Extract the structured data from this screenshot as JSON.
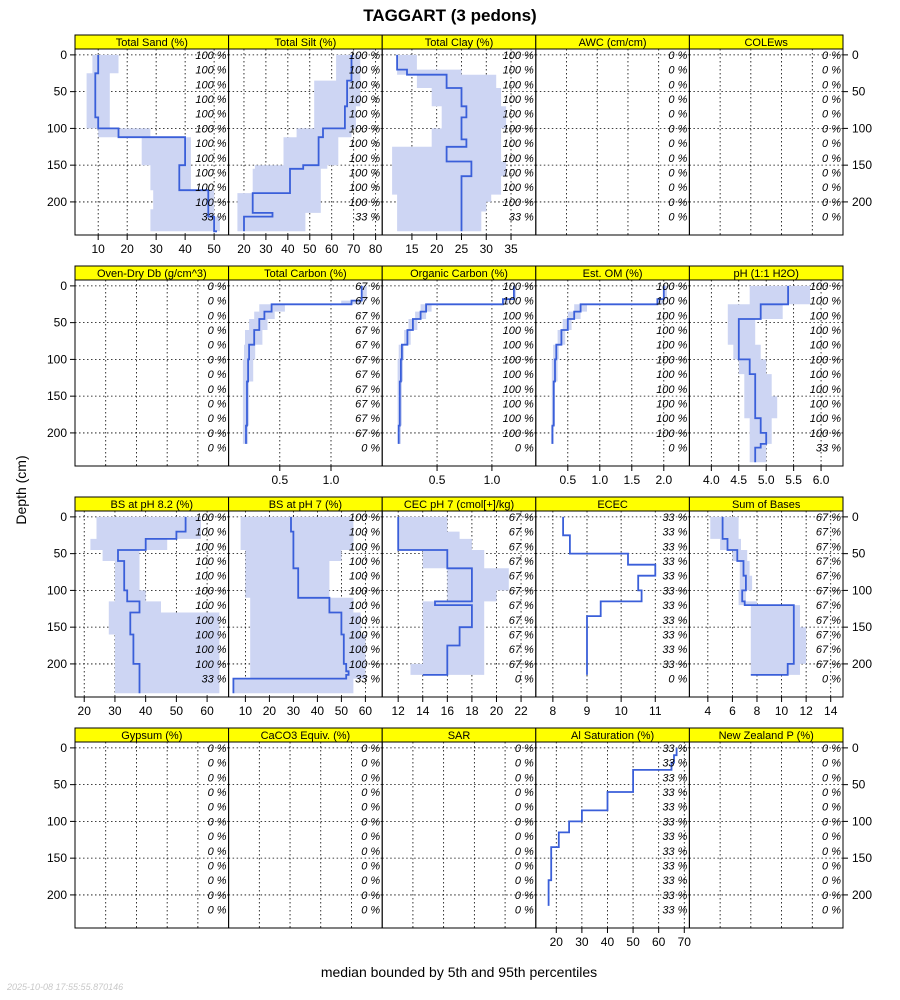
{
  "title": "TAGGART (3 pedons)",
  "caption": "median bounded by 5th and 95th percentiles",
  "ylabel": "Depth (cm)",
  "timestamp": "2025-10-08 17:55:55.870146",
  "colors": {
    "line": "#3a5fd9",
    "band": "#cdd5f3",
    "strip": "#ffff00",
    "axis": "#000000",
    "grid": "#000000"
  },
  "depth_ticks": [
    0,
    50,
    100,
    150,
    200
  ],
  "pct_labels": {
    "a": [
      "100 %",
      "100 %",
      "100 %",
      "100 %",
      "100 %",
      "100 %",
      "100 %",
      "100 %",
      "100 %",
      "100 %",
      "100 %",
      "33 %"
    ],
    "b": [
      "0 %",
      "0 %",
      "0 %",
      "0 %",
      "0 %",
      "0 %",
      "0 %",
      "0 %",
      "0 %",
      "0 %",
      "0 %",
      "0 %"
    ],
    "c": [
      "67 %",
      "67 %",
      "67 %",
      "67 %",
      "67 %",
      "67 %",
      "67 %",
      "67 %",
      "67 %",
      "67 %",
      "67 %",
      "0 %"
    ],
    "d": [
      "100 %",
      "100 %",
      "100 %",
      "100 %",
      "100 %",
      "100 %",
      "100 %",
      "100 %",
      "100 %",
      "100 %",
      "100 %",
      "0 %"
    ],
    "e": [
      "33 %",
      "33 %",
      "33 %",
      "33 %",
      "33 %",
      "33 %",
      "33 %",
      "33 %",
      "33 %",
      "33 %",
      "33 %",
      "0 %"
    ],
    "f": [
      "33 %",
      "33 %",
      "33 %",
      "33 %",
      "33 %",
      "33 %",
      "33 %",
      "33 %",
      "33 %",
      "33 %",
      "33 %",
      "33 %"
    ]
  },
  "chart_data": [
    {
      "type": "line",
      "title": "Total Sand (%)",
      "xlim": [
        2,
        55
      ],
      "xticks": [
        "10",
        "20",
        "30",
        "40",
        "50"
      ],
      "tick_values": [
        10,
        20,
        30,
        40,
        50
      ],
      "pct": "a",
      "depth": [
        0,
        10,
        25,
        40,
        55,
        70,
        85,
        100,
        112,
        150,
        165,
        184,
        200,
        210,
        220,
        240
      ],
      "values": [
        10,
        10,
        9,
        9,
        9,
        9,
        10,
        17,
        40,
        38,
        38,
        48,
        48,
        48,
        50,
        51
      ],
      "lower": [
        8,
        8,
        6,
        6,
        6,
        6,
        6,
        10,
        25,
        28,
        28,
        29,
        29,
        28,
        28,
        28
      ],
      "upper": [
        17,
        17,
        14,
        14,
        14,
        14,
        14,
        28,
        42,
        42,
        42,
        50,
        50,
        50,
        52,
        52
      ]
    },
    {
      "type": "line",
      "title": "Total Silt (%)",
      "xlim": [
        13,
        83
      ],
      "xticks": [
        "20",
        "30",
        "40",
        "50",
        "60",
        "70",
        "80"
      ],
      "tick_values": [
        20,
        30,
        40,
        50,
        60,
        70,
        80
      ],
      "pct": "a",
      "depth": [
        0,
        25,
        35,
        60,
        70,
        100,
        112,
        150,
        155,
        188,
        200,
        210,
        215,
        220,
        240
      ],
      "values": [
        69,
        69,
        67,
        67,
        66,
        56,
        54,
        47,
        41,
        24,
        24,
        24,
        33,
        20,
        20
      ],
      "lower": [
        62,
        62,
        52,
        52,
        52,
        44,
        38,
        25,
        24,
        17,
        17,
        17,
        17,
        17,
        17
      ],
      "upper": [
        73,
        73,
        73,
        73,
        71,
        69,
        63,
        58,
        55,
        55,
        55,
        55,
        48,
        48,
        48
      ]
    },
    {
      "type": "line",
      "title": "Total Clay (%)",
      "xlim": [
        9,
        40
      ],
      "xticks": [
        "15",
        "20",
        "25",
        "30",
        "35"
      ],
      "tick_values": [
        15,
        20,
        25,
        30,
        35
      ],
      "pct": "a",
      "depth": [
        0,
        20,
        27,
        45,
        70,
        85,
        100,
        115,
        125,
        145,
        150,
        165,
        190,
        200,
        213,
        240
      ],
      "values": [
        12,
        14,
        22,
        25,
        26,
        25,
        25,
        26,
        22,
        27,
        27,
        25,
        25,
        25,
        25,
        25
      ],
      "lower": [
        12,
        12,
        16,
        19,
        21,
        21,
        19,
        19,
        11,
        11,
        11,
        11,
        12,
        12,
        12,
        12
      ],
      "upper": [
        16,
        25,
        32,
        33,
        34,
        34,
        33,
        33,
        33,
        34,
        34,
        33,
        31,
        30,
        29,
        28
      ]
    },
    {
      "type": "empty",
      "title": "AWC (cm/cm)",
      "xticks": [],
      "pct": "b"
    },
    {
      "type": "empty",
      "title": "COLEws",
      "xticks": [],
      "pct": "b"
    },
    {
      "type": "empty",
      "title": "Oven-Dry Db (g/cm^3)",
      "xticks": [],
      "pct": "b"
    },
    {
      "type": "line",
      "title": "Total Carbon (%)",
      "xlim": [
        0.0,
        1.5
      ],
      "xticks": [
        "0.5",
        "1.0"
      ],
      "tick_values": [
        0.5,
        1.0
      ],
      "pct": "c",
      "depth": [
        0,
        20,
        25,
        35,
        45,
        60,
        80,
        100,
        130,
        160,
        190,
        215
      ],
      "values": [
        1.3,
        1.2,
        0.42,
        0.35,
        0.3,
        0.25,
        0.2,
        0.19,
        0.18,
        0.18,
        0.17,
        0.17
      ],
      "lower": [
        1.3,
        1.1,
        0.3,
        0.25,
        0.2,
        0.16,
        0.15,
        0.14,
        0.14,
        0.14,
        0.14,
        0.14
      ],
      "upper": [
        1.35,
        1.3,
        0.55,
        0.45,
        0.38,
        0.33,
        0.26,
        0.24,
        0.2,
        0.2,
        0.19,
        0.19
      ]
    },
    {
      "type": "line",
      "title": "Organic Carbon (%)",
      "xlim": [
        0.0,
        1.4
      ],
      "xticks": [
        "0.5",
        "1.0"
      ],
      "tick_values": [
        0.5,
        1.0
      ],
      "pct": "d",
      "depth": [
        0,
        18,
        25,
        35,
        45,
        60,
        80,
        100,
        130,
        160,
        190,
        215
      ],
      "values": [
        1.2,
        1.1,
        0.4,
        0.35,
        0.28,
        0.23,
        0.18,
        0.17,
        0.16,
        0.16,
        0.15,
        0.15
      ],
      "lower": [
        1.2,
        1.1,
        0.35,
        0.3,
        0.24,
        0.2,
        0.15,
        0.14,
        0.14,
        0.14,
        0.14,
        0.14
      ],
      "upper": [
        1.22,
        1.15,
        0.45,
        0.4,
        0.32,
        0.26,
        0.2,
        0.19,
        0.18,
        0.18,
        0.17,
        0.17
      ]
    },
    {
      "type": "line",
      "title": "Est. OM (%)",
      "xlim": [
        0.0,
        2.4
      ],
      "xticks": [
        "0.5",
        "1.0",
        "1.5",
        "2.0"
      ],
      "tick_values": [
        0.5,
        1.0,
        1.5,
        2.0
      ],
      "pct": "d",
      "depth": [
        0,
        18,
        25,
        35,
        45,
        60,
        80,
        100,
        130,
        160,
        190,
        215
      ],
      "values": [
        2.0,
        1.9,
        0.7,
        0.6,
        0.5,
        0.4,
        0.32,
        0.3,
        0.28,
        0.28,
        0.26,
        0.26
      ],
      "lower": [
        2.0,
        1.9,
        0.6,
        0.5,
        0.42,
        0.34,
        0.27,
        0.25,
        0.25,
        0.25,
        0.24,
        0.24
      ],
      "upper": [
        2.05,
        2.0,
        0.8,
        0.7,
        0.56,
        0.46,
        0.36,
        0.34,
        0.3,
        0.3,
        0.28,
        0.28
      ]
    },
    {
      "type": "line",
      "title": "pH (1:1 H2O)",
      "xlim": [
        3.6,
        6.4
      ],
      "xticks": [
        "4.0",
        "4.5",
        "5.0",
        "5.5",
        "6.0"
      ],
      "tick_values": [
        4.0,
        4.5,
        5.0,
        5.5,
        6.0
      ],
      "pct": "a",
      "depth": [
        0,
        20,
        25,
        45,
        60,
        80,
        100,
        120,
        150,
        180,
        200,
        215,
        220,
        240
      ],
      "values": [
        5.4,
        5.4,
        4.9,
        4.5,
        4.5,
        4.5,
        4.7,
        4.8,
        4.8,
        4.9,
        5.0,
        4.9,
        4.8,
        4.8
      ],
      "lower": [
        4.7,
        4.7,
        4.3,
        4.3,
        4.3,
        4.4,
        4.5,
        4.6,
        4.6,
        4.7,
        4.7,
        4.7,
        4.7,
        4.7
      ],
      "upper": [
        5.8,
        5.8,
        5.3,
        4.8,
        4.8,
        4.9,
        5.0,
        5.1,
        5.2,
        5.1,
        5.1,
        5.0,
        5.0,
        5.0
      ]
    },
    {
      "type": "line",
      "title": "BS at pH 8.2 (%)",
      "xlim": [
        17,
        67
      ],
      "xticks": [
        "20",
        "30",
        "40",
        "50",
        "60"
      ],
      "tick_values": [
        20,
        30,
        40,
        50,
        60
      ],
      "pct": "a",
      "depth": [
        0,
        20,
        30,
        45,
        60,
        80,
        100,
        115,
        130,
        160,
        200,
        240
      ],
      "values": [
        53,
        50,
        40,
        31,
        33,
        33,
        34,
        38,
        35,
        36,
        38,
        38
      ],
      "lower": [
        24,
        24,
        22,
        26,
        30,
        30,
        30,
        28,
        28,
        30,
        30,
        30
      ],
      "upper": [
        58,
        58,
        47,
        38,
        38,
        38,
        40,
        45,
        64,
        64,
        64,
        64
      ]
    },
    {
      "type": "line",
      "title": "BS at pH 7 (%)",
      "xlim": [
        3,
        67
      ],
      "xticks": [
        "10",
        "20",
        "30",
        "40",
        "50",
        "60"
      ],
      "tick_values": [
        10,
        20,
        30,
        40,
        50,
        60
      ],
      "pct": "a",
      "depth": [
        0,
        20,
        45,
        60,
        70,
        100,
        110,
        130,
        160,
        200,
        210,
        215,
        220,
        240
      ],
      "values": [
        29,
        30,
        30,
        30,
        32,
        32,
        45,
        50,
        51,
        52,
        53,
        52,
        5,
        5
      ],
      "lower": [
        8,
        8,
        10,
        10,
        10,
        10,
        12,
        12,
        12,
        12,
        12,
        12,
        5,
        5
      ],
      "upper": [
        55,
        55,
        50,
        45,
        45,
        45,
        55,
        58,
        60,
        60,
        60,
        60,
        55,
        55
      ]
    },
    {
      "type": "line",
      "title": "CEC pH 7 (cmol[+]/kg)",
      "xlim": [
        10.7,
        23.2
      ],
      "xticks": [
        "12",
        "14",
        "16",
        "18",
        "20",
        "22"
      ],
      "tick_values": [
        12,
        14,
        16,
        18,
        20,
        22
      ],
      "pct": "c",
      "depth": [
        0,
        20,
        30,
        45,
        70,
        100,
        115,
        120,
        150,
        175,
        200,
        215
      ],
      "values": [
        12,
        12,
        12,
        16,
        18,
        18,
        15,
        18,
        17,
        16,
        16,
        14
      ],
      "lower": [
        12,
        12,
        12,
        14,
        16,
        16,
        14,
        14,
        14,
        14,
        13,
        13
      ],
      "upper": [
        16,
        17,
        18,
        19,
        21,
        20,
        19,
        19,
        19,
        19,
        19,
        18
      ]
    },
    {
      "type": "line",
      "title": "ECEC",
      "xlim": [
        7.5,
        12
      ],
      "xticks": [
        "8",
        "9",
        "10",
        "11"
      ],
      "tick_values": [
        8,
        9,
        10,
        11
      ],
      "pct": "e",
      "depth": [
        0,
        25,
        50,
        65,
        80,
        100,
        115,
        135,
        160,
        215
      ],
      "values": [
        8.3,
        8.5,
        10.2,
        11.0,
        10.5,
        10.6,
        9.4,
        9.0,
        9.0,
        9.0
      ],
      "lower": [
        8.3,
        8.5,
        10.2,
        11.0,
        10.5,
        10.6,
        9.4,
        9.0,
        9.0,
        9.0
      ],
      "upper": [
        8.3,
        8.5,
        10.2,
        11.0,
        10.5,
        10.6,
        9.4,
        9.0,
        9.0,
        9.0
      ]
    },
    {
      "type": "line",
      "title": "Sum of Bases",
      "xlim": [
        2.5,
        15
      ],
      "xticks": [
        "4",
        "6",
        "8",
        "10",
        "12",
        "14"
      ],
      "tick_values": [
        4,
        6,
        8,
        10,
        12,
        14
      ],
      "pct": "c",
      "depth": [
        0,
        15,
        30,
        45,
        60,
        80,
        100,
        115,
        120,
        150,
        200,
        215
      ],
      "values": [
        5.2,
        5.2,
        5.6,
        6.4,
        6.9,
        7.1,
        6.8,
        7.0,
        11.0,
        11.0,
        10.5,
        7.5
      ],
      "lower": [
        4.2,
        4.2,
        5.0,
        6.0,
        6.6,
        6.6,
        6.5,
        6.5,
        7.5,
        7.5,
        7.5,
        7.5
      ],
      "upper": [
        6.5,
        6.5,
        6.7,
        7.2,
        7.4,
        7.6,
        7.1,
        8.0,
        11.5,
        12.0,
        11.5,
        11.5
      ]
    },
    {
      "type": "empty",
      "title": "Gypsum (%)",
      "xticks": [],
      "pct": "b"
    },
    {
      "type": "empty",
      "title": "CaCO3 Equiv. (%)",
      "xticks": [],
      "pct": "b"
    },
    {
      "type": "empty",
      "title": "SAR",
      "xticks": [],
      "pct": "b"
    },
    {
      "type": "line",
      "title": "Al Saturation (%)",
      "xlim": [
        12,
        72
      ],
      "xticks": [
        "20",
        "30",
        "40",
        "50",
        "60",
        "70"
      ],
      "tick_values": [
        20,
        30,
        40,
        50,
        60,
        70
      ],
      "pct": "f",
      "depth": [
        0,
        10,
        20,
        30,
        60,
        85,
        100,
        115,
        135,
        180,
        215
      ],
      "values": [
        67,
        66,
        65,
        50,
        40,
        30,
        25,
        21,
        18,
        17,
        17
      ],
      "lower": [
        67,
        66,
        65,
        50,
        40,
        30,
        25,
        21,
        18,
        17,
        17
      ],
      "upper": [
        67,
        66,
        65,
        50,
        40,
        30,
        25,
        21,
        18,
        17,
        17
      ]
    },
    {
      "type": "empty",
      "title": "New Zealand P (%)",
      "xticks": [],
      "pct": "b"
    }
  ]
}
